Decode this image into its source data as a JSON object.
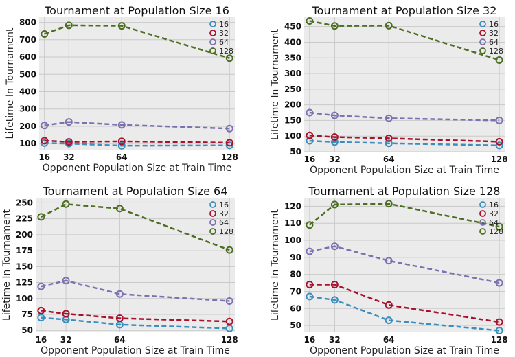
{
  "colors": {
    "plot_bg": "#ebebeb",
    "grid": "#c9c9c9",
    "series_16": "#3a8ebf",
    "series_32": "#a8102c",
    "series_64": "#7d70b0",
    "series_128": "#4d6e22"
  },
  "chart_data": [
    {
      "type": "line",
      "title": "Tournament at Population Size 16",
      "xlabel": "Opponent Population Size at Train Time",
      "ylabel": "Lifetime In Tournament",
      "x": [
        16,
        32,
        64,
        128
      ],
      "xticks": [
        "16",
        "32",
        "64",
        "128"
      ],
      "yticks": [
        100,
        200,
        300,
        400,
        500,
        600,
        700,
        800
      ],
      "ylim": [
        65,
        830
      ],
      "grid": true,
      "legend_position": "top-right",
      "series": [
        {
          "name": "16",
          "values": [
            103,
            100,
            88,
            90
          ]
        },
        {
          "name": "32",
          "values": [
            117,
            110,
            113,
            105
          ]
        },
        {
          "name": "64",
          "values": [
            205,
            225,
            208,
            187
          ]
        },
        {
          "name": "128",
          "values": [
            733,
            783,
            780,
            593
          ]
        }
      ]
    },
    {
      "type": "line",
      "title": "Tournament at Population Size 32",
      "xlabel": "Opponent Population Size at Train Time",
      "ylabel": "Lifetime In Tournament",
      "x": [
        16,
        32,
        64,
        128
      ],
      "xticks": [
        "16",
        "32",
        "64",
        "128"
      ],
      "yticks": [
        50,
        100,
        150,
        200,
        250,
        300,
        350,
        400,
        450
      ],
      "ylim": [
        50,
        480
      ],
      "grid": true,
      "legend_position": "top-right",
      "series": [
        {
          "name": "16",
          "values": [
            85,
            81,
            77,
            70
          ]
        },
        {
          "name": "32",
          "values": [
            102,
            97,
            93,
            82
          ]
        },
        {
          "name": "64",
          "values": [
            175,
            166,
            157,
            150
          ]
        },
        {
          "name": "128",
          "values": [
            468,
            452,
            453,
            343
          ]
        }
      ]
    },
    {
      "type": "line",
      "title": "Tournament at Population Size 64",
      "xlabel": "Opponent Population Size at Train Time",
      "ylabel": "Lifetime In Tournament",
      "x": [
        16,
        32,
        64,
        128
      ],
      "xticks": [
        "16",
        "32",
        "64",
        "128"
      ],
      "yticks": [
        50,
        75,
        100,
        125,
        150,
        175,
        200,
        225,
        250
      ],
      "ylim": [
        47,
        258
      ],
      "grid": true,
      "legend_position": "top-right",
      "series": [
        {
          "name": "16",
          "values": [
            70,
            67,
            59,
            53
          ]
        },
        {
          "name": "32",
          "values": [
            81,
            76,
            69,
            64
          ]
        },
        {
          "name": "64",
          "values": [
            119,
            128,
            107,
            96
          ]
        },
        {
          "name": "128",
          "values": [
            228,
            248,
            241,
            176
          ]
        }
      ]
    },
    {
      "type": "line",
      "title": "Tournament at Population Size 128",
      "xlabel": "Opponent Population Size at Train Time",
      "ylabel": "Lifetime In Tournament",
      "x": [
        16,
        32,
        64,
        128
      ],
      "xticks": [
        "16",
        "32",
        "64",
        "128"
      ],
      "yticks": [
        50,
        60,
        70,
        80,
        90,
        100,
        110,
        120
      ],
      "ylim": [
        46,
        125
      ],
      "grid": true,
      "legend_position": "top-right",
      "series": [
        {
          "name": "16",
          "values": [
            67,
            65,
            53,
            47
          ]
        },
        {
          "name": "32",
          "values": [
            74,
            74,
            62,
            52
          ]
        },
        {
          "name": "64",
          "values": [
            93.5,
            96.5,
            88,
            75
          ]
        },
        {
          "name": "128",
          "values": [
            109,
            121,
            121.5,
            108
          ]
        }
      ]
    }
  ]
}
